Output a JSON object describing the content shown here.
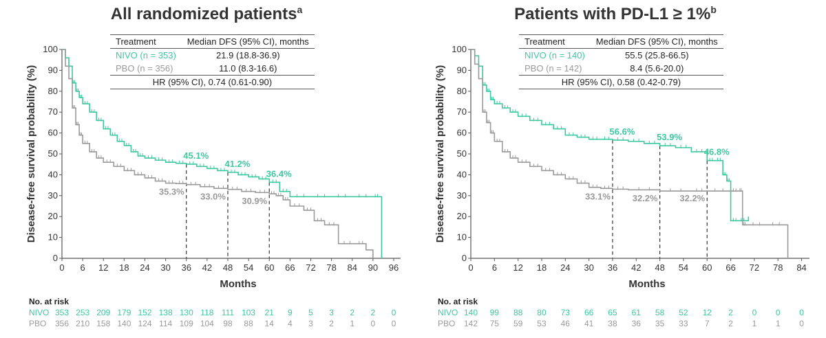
{
  "colors": {
    "nivo": "#3cc8a0",
    "pbo": "#9a9a9a",
    "axis": "#555555"
  },
  "charts": [
    {
      "title": "All randomized patients",
      "title_sup": "a",
      "legend": {
        "col1": "Treatment",
        "col2": "Median DFS (95% CI), months",
        "rows": [
          {
            "label": "NIVO (n = 353)",
            "value": "21.9 (18.8-36.9)"
          },
          {
            "label": "PBO (n = 356)",
            "value": "11.0 (8.3-16.6)"
          }
        ],
        "hr": "HR (95% CI), 0.74 (0.61-0.90)"
      },
      "risk": {
        "title": "No. at risk",
        "nivo_label": "NIVO",
        "pbo_label": "PBO",
        "nivo": [
          "353",
          "253",
          "209",
          "179",
          "152",
          "138",
          "130",
          "118",
          "111",
          "103",
          "21",
          "9",
          "5",
          "3",
          "2",
          "2",
          "0"
        ],
        "pbo": [
          "356",
          "210",
          "158",
          "140",
          "124",
          "114",
          "109",
          "104",
          "98",
          "88",
          "14",
          "4",
          "3",
          "2",
          "1",
          "0",
          "0"
        ]
      }
    },
    {
      "title": "Patients with PD-L1 ≥ 1%",
      "title_sup": "b",
      "legend": {
        "col1": "Treatment",
        "col2": "Median DFS (95% CI), months",
        "rows": [
          {
            "label": "NIVO (n = 140)",
            "value": "55.5 (25.8-66.5)"
          },
          {
            "label": "PBO (n = 142)",
            "value": "8.4 (5.6-20.0)"
          }
        ],
        "hr": "HR (95% CI), 0.58 (0.42-0.79)"
      },
      "risk": {
        "title": "No. at risk",
        "nivo_label": "NIVO",
        "pbo_label": "PBO",
        "nivo": [
          "140",
          "99",
          "88",
          "80",
          "73",
          "66",
          "65",
          "61",
          "58",
          "52",
          "12",
          "2",
          "0",
          "0",
          "0"
        ],
        "pbo": [
          "142",
          "75",
          "59",
          "53",
          "46",
          "41",
          "38",
          "36",
          "35",
          "33",
          "7",
          "2",
          "1",
          "1",
          "0"
        ]
      }
    }
  ],
  "chart_data": [
    {
      "type": "line",
      "title": "All randomized patients",
      "xlabel": "Months",
      "ylabel": "Disease-free survival probability (%)",
      "xlim": [
        0,
        98
      ],
      "ylim": [
        0,
        100
      ],
      "xticks": [
        0,
        6,
        12,
        18,
        24,
        30,
        36,
        42,
        48,
        54,
        60,
        66,
        72,
        78,
        84,
        90,
        96
      ],
      "yticks": [
        0,
        10,
        20,
        30,
        40,
        50,
        60,
        70,
        80,
        90,
        100
      ],
      "landmarks": [
        36,
        48,
        60
      ],
      "series": [
        {
          "name": "NIVO",
          "x": [
            0,
            1,
            2,
            3,
            4,
            5,
            6,
            8,
            10,
            12,
            14,
            16,
            18,
            20,
            22,
            24,
            27,
            30,
            33,
            36,
            39,
            42,
            45,
            48,
            51,
            54,
            57,
            60,
            63,
            66,
            72,
            78,
            84,
            90,
            92,
            92.5
          ],
          "y": [
            100,
            96,
            92,
            84,
            80,
            77,
            74,
            70,
            66,
            62,
            59,
            56,
            54,
            51,
            49,
            48,
            47,
            46,
            45.5,
            45.1,
            44,
            43,
            42,
            41.2,
            40,
            39,
            38,
            36.4,
            32,
            29.5,
            29.5,
            29.5,
            29.5,
            29.5,
            29.5,
            0
          ],
          "labels": [
            "45.1%",
            "41.2%",
            "36.4%"
          ],
          "label_x": [
            36,
            48,
            60
          ],
          "label_y": [
            45.1,
            41.2,
            36.4
          ]
        },
        {
          "name": "PBO",
          "x": [
            0,
            1,
            2,
            3,
            4,
            5,
            6,
            8,
            10,
            12,
            15,
            18,
            21,
            24,
            27,
            30,
            33,
            36,
            40,
            44,
            48,
            52,
            56,
            60,
            62,
            64,
            66,
            70,
            73,
            76,
            80,
            85,
            88,
            90
          ],
          "y": [
            100,
            92,
            86,
            72,
            64,
            59,
            55,
            51,
            48,
            46,
            44,
            42,
            40,
            38.5,
            37,
            36,
            35.8,
            35.3,
            34.3,
            33.5,
            33,
            32,
            31.5,
            30.9,
            30,
            28,
            25,
            23,
            18,
            16,
            7,
            7,
            4,
            0
          ],
          "labels": [
            "35.3%",
            "33.0%",
            "30.9%"
          ],
          "label_x": [
            36,
            48,
            60
          ],
          "label_y": [
            35.3,
            33.0,
            30.9
          ]
        }
      ]
    },
    {
      "type": "line",
      "title": "Patients with PD-L1 ≥ 1%",
      "xlabel": "Months",
      "ylabel": "Disease-free survival probability (%)",
      "xlim": [
        0,
        86
      ],
      "ylim": [
        0,
        100
      ],
      "xticks": [
        0,
        6,
        12,
        18,
        24,
        30,
        36,
        42,
        48,
        54,
        60,
        66,
        72,
        78,
        84
      ],
      "yticks": [
        0,
        10,
        20,
        30,
        40,
        50,
        60,
        70,
        80,
        90,
        100
      ],
      "landmarks": [
        36,
        48,
        60
      ],
      "series": [
        {
          "name": "NIVO",
          "x": [
            0,
            1,
            2,
            3,
            4,
            5,
            6,
            8,
            10,
            12,
            15,
            18,
            21,
            24,
            27,
            30,
            33,
            36,
            40,
            44,
            48,
            52,
            56,
            60,
            62,
            64,
            65,
            66,
            68,
            70,
            70.5
          ],
          "y": [
            100,
            97,
            92,
            83,
            80,
            76,
            74,
            72,
            70,
            68,
            66,
            64,
            62,
            59,
            58,
            57,
            57,
            56.6,
            56,
            55,
            53.9,
            53,
            51,
            46.8,
            46.8,
            40,
            37,
            18,
            18,
            18,
            20
          ],
          "labels": [
            "56.6%",
            "53.9%",
            "46.8%"
          ],
          "label_x": [
            36,
            48,
            60
          ],
          "label_y": [
            56.6,
            53.9,
            46.8
          ]
        },
        {
          "name": "PBO",
          "x": [
            0,
            1,
            2,
            3,
            4,
            5,
            6,
            8,
            10,
            12,
            15,
            18,
            21,
            24,
            27,
            30,
            33,
            36,
            40,
            48,
            56,
            60,
            66,
            68,
            69,
            70,
            75,
            80,
            80.5
          ],
          "y": [
            100,
            93,
            86,
            70,
            65,
            60,
            56,
            51,
            48,
            46,
            44,
            42,
            40,
            38,
            36,
            34,
            33.5,
            33.1,
            32.8,
            32.2,
            32.2,
            32.2,
            32.2,
            32.2,
            16,
            16,
            16,
            16,
            0
          ],
          "labels": [
            "33.1%",
            "32.2%",
            "32.2%"
          ],
          "label_x": [
            36,
            48,
            60
          ],
          "label_y": [
            33.1,
            32.2,
            32.2
          ]
        }
      ]
    }
  ]
}
